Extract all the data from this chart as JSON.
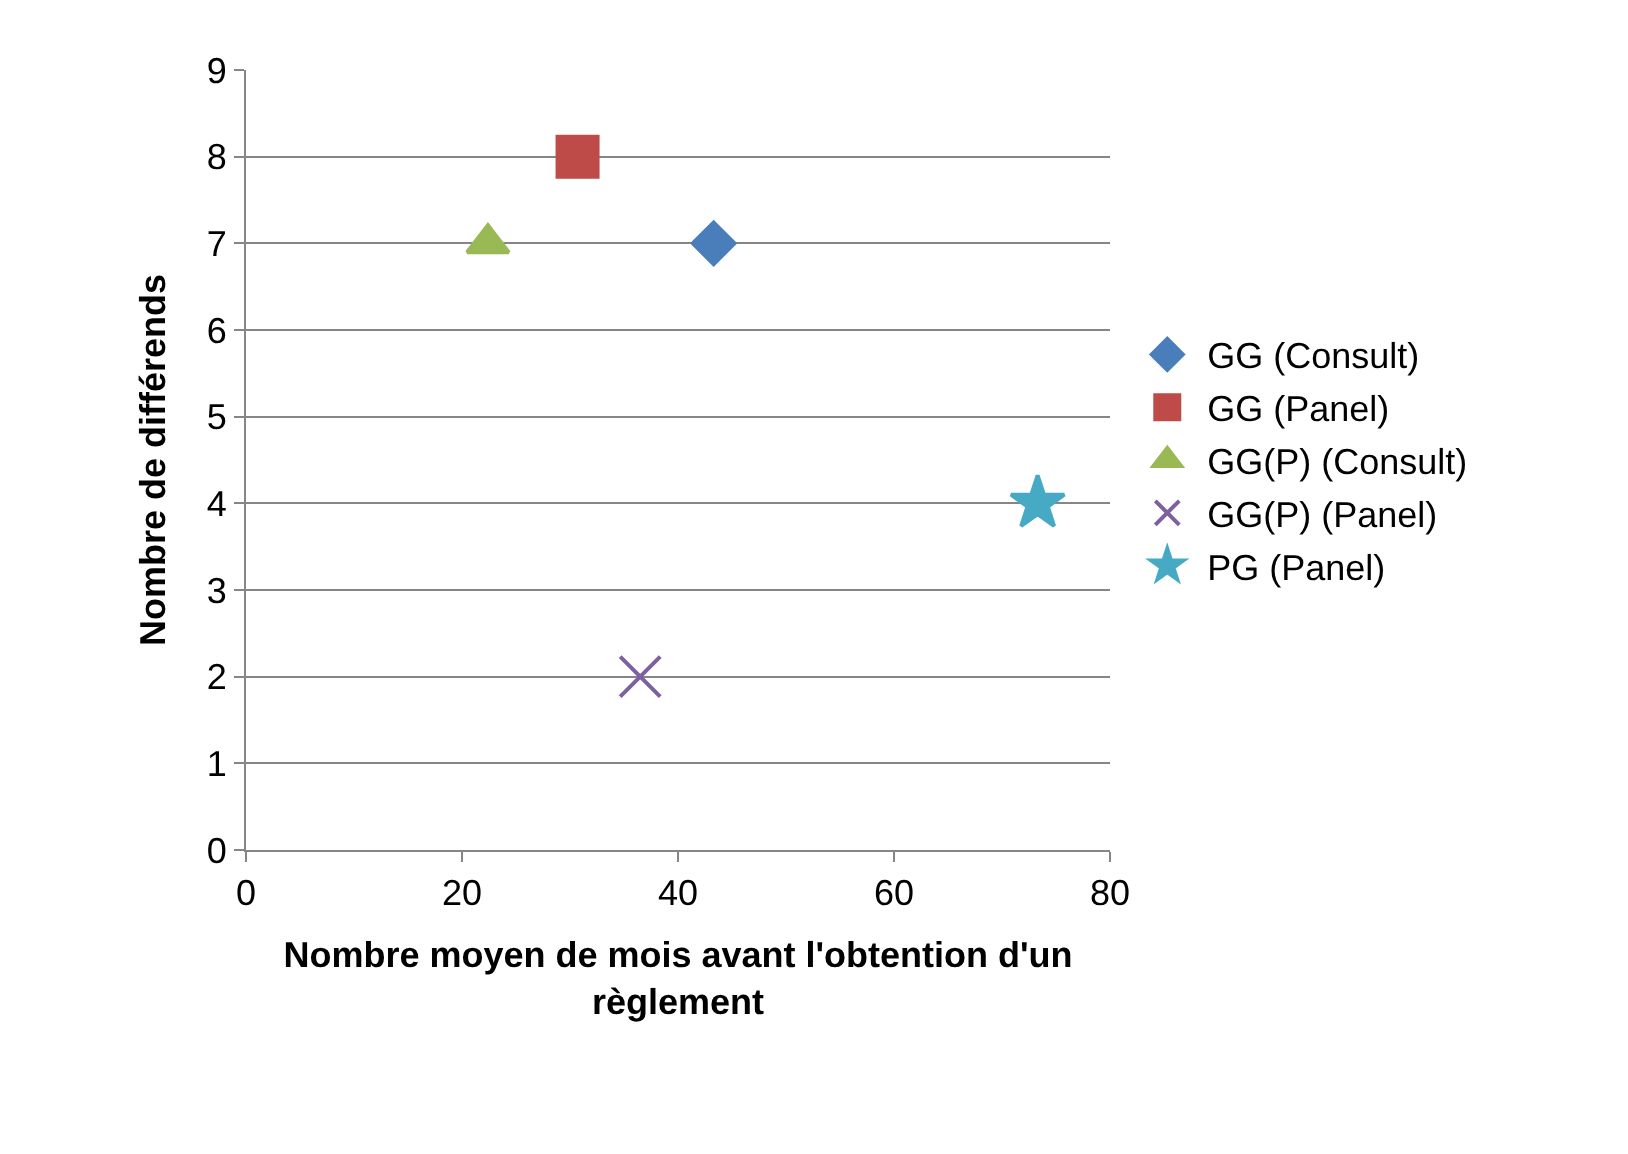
{
  "chart_data": {
    "type": "scatter",
    "xlabel": "Nombre moyen de mois avant l'obtention d'un règlement",
    "ylabel": "Nombre de différends",
    "xlim": [
      0,
      80
    ],
    "xticks": [
      0,
      20,
      40,
      60,
      80
    ],
    "ylim": [
      0,
      9
    ],
    "yticks": [
      0,
      1,
      2,
      3,
      4,
      5,
      6,
      7,
      8,
      9
    ],
    "grid": "y",
    "legend": "right",
    "series": [
      {
        "name": "GG (Consult)",
        "color": "#4a7ebb",
        "marker": "diamond",
        "x": [
          43.3
        ],
        "values": [
          7
        ]
      },
      {
        "name": "GG (Panel)",
        "color": "#be4b48",
        "marker": "square",
        "x": [
          30.7
        ],
        "values": [
          8
        ]
      },
      {
        "name": "GG(P) (Consult)",
        "color": "#98b954",
        "marker": "triangle",
        "x": [
          22.4
        ],
        "values": [
          7
        ]
      },
      {
        "name": "GG(P) (Panel)",
        "color": "#7d60a0",
        "marker": "cross",
        "x": [
          36.5
        ],
        "values": [
          2
        ]
      },
      {
        "name": "PG (Panel)",
        "color": "#46aac5",
        "marker": "star",
        "x": [
          73.3
        ],
        "values": [
          4
        ]
      }
    ]
  }
}
